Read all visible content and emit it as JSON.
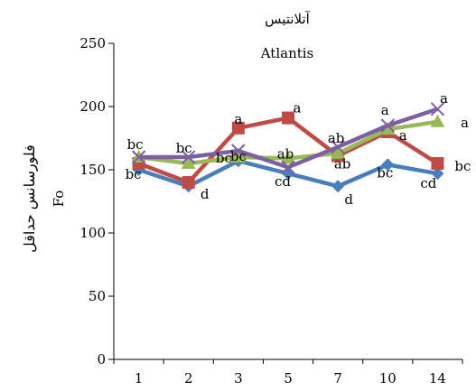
{
  "chart_data": {
    "type": "line",
    "title": "آتلانتیس",
    "subtitle": "Atlantis",
    "ylabel_fa": "فلورسانس حداقل",
    "ylabel_en": "Fo",
    "xlabel": "",
    "categories": [
      "1",
      "2",
      "3",
      "5",
      "7",
      "10",
      "14"
    ],
    "ylim": [
      0,
      250
    ],
    "yticks": [
      0,
      50,
      100,
      150,
      200,
      250
    ],
    "grid": false,
    "legend": "none",
    "series": [
      {
        "color": "#4a7ebb",
        "marker": "diamond",
        "values": [
          150,
          137,
          157,
          147,
          137,
          154,
          147
        ],
        "labels": [
          "bc",
          "d",
          "",
          "cd",
          "d",
          "bc",
          "cd"
        ]
      },
      {
        "color": "#be4b48",
        "marker": "square",
        "values": [
          155,
          140,
          183,
          191,
          161,
          180,
          155
        ],
        "labels": [
          "",
          "",
          "a",
          "a",
          "ab",
          "a",
          "bc"
        ]
      },
      {
        "color": "#98b954",
        "marker": "triangle",
        "values": [
          160,
          155,
          160,
          159,
          163,
          182,
          188
        ],
        "labels": [
          "bc",
          "",
          "bc",
          "ab",
          "ab",
          "",
          "a"
        ]
      },
      {
        "color": "#7d60a0",
        "marker": "x",
        "values": [
          160,
          160,
          165,
          152,
          168,
          185,
          198
        ],
        "labels": [
          "",
          "bc",
          "bc",
          "",
          "",
          "a",
          "a"
        ]
      }
    ]
  }
}
